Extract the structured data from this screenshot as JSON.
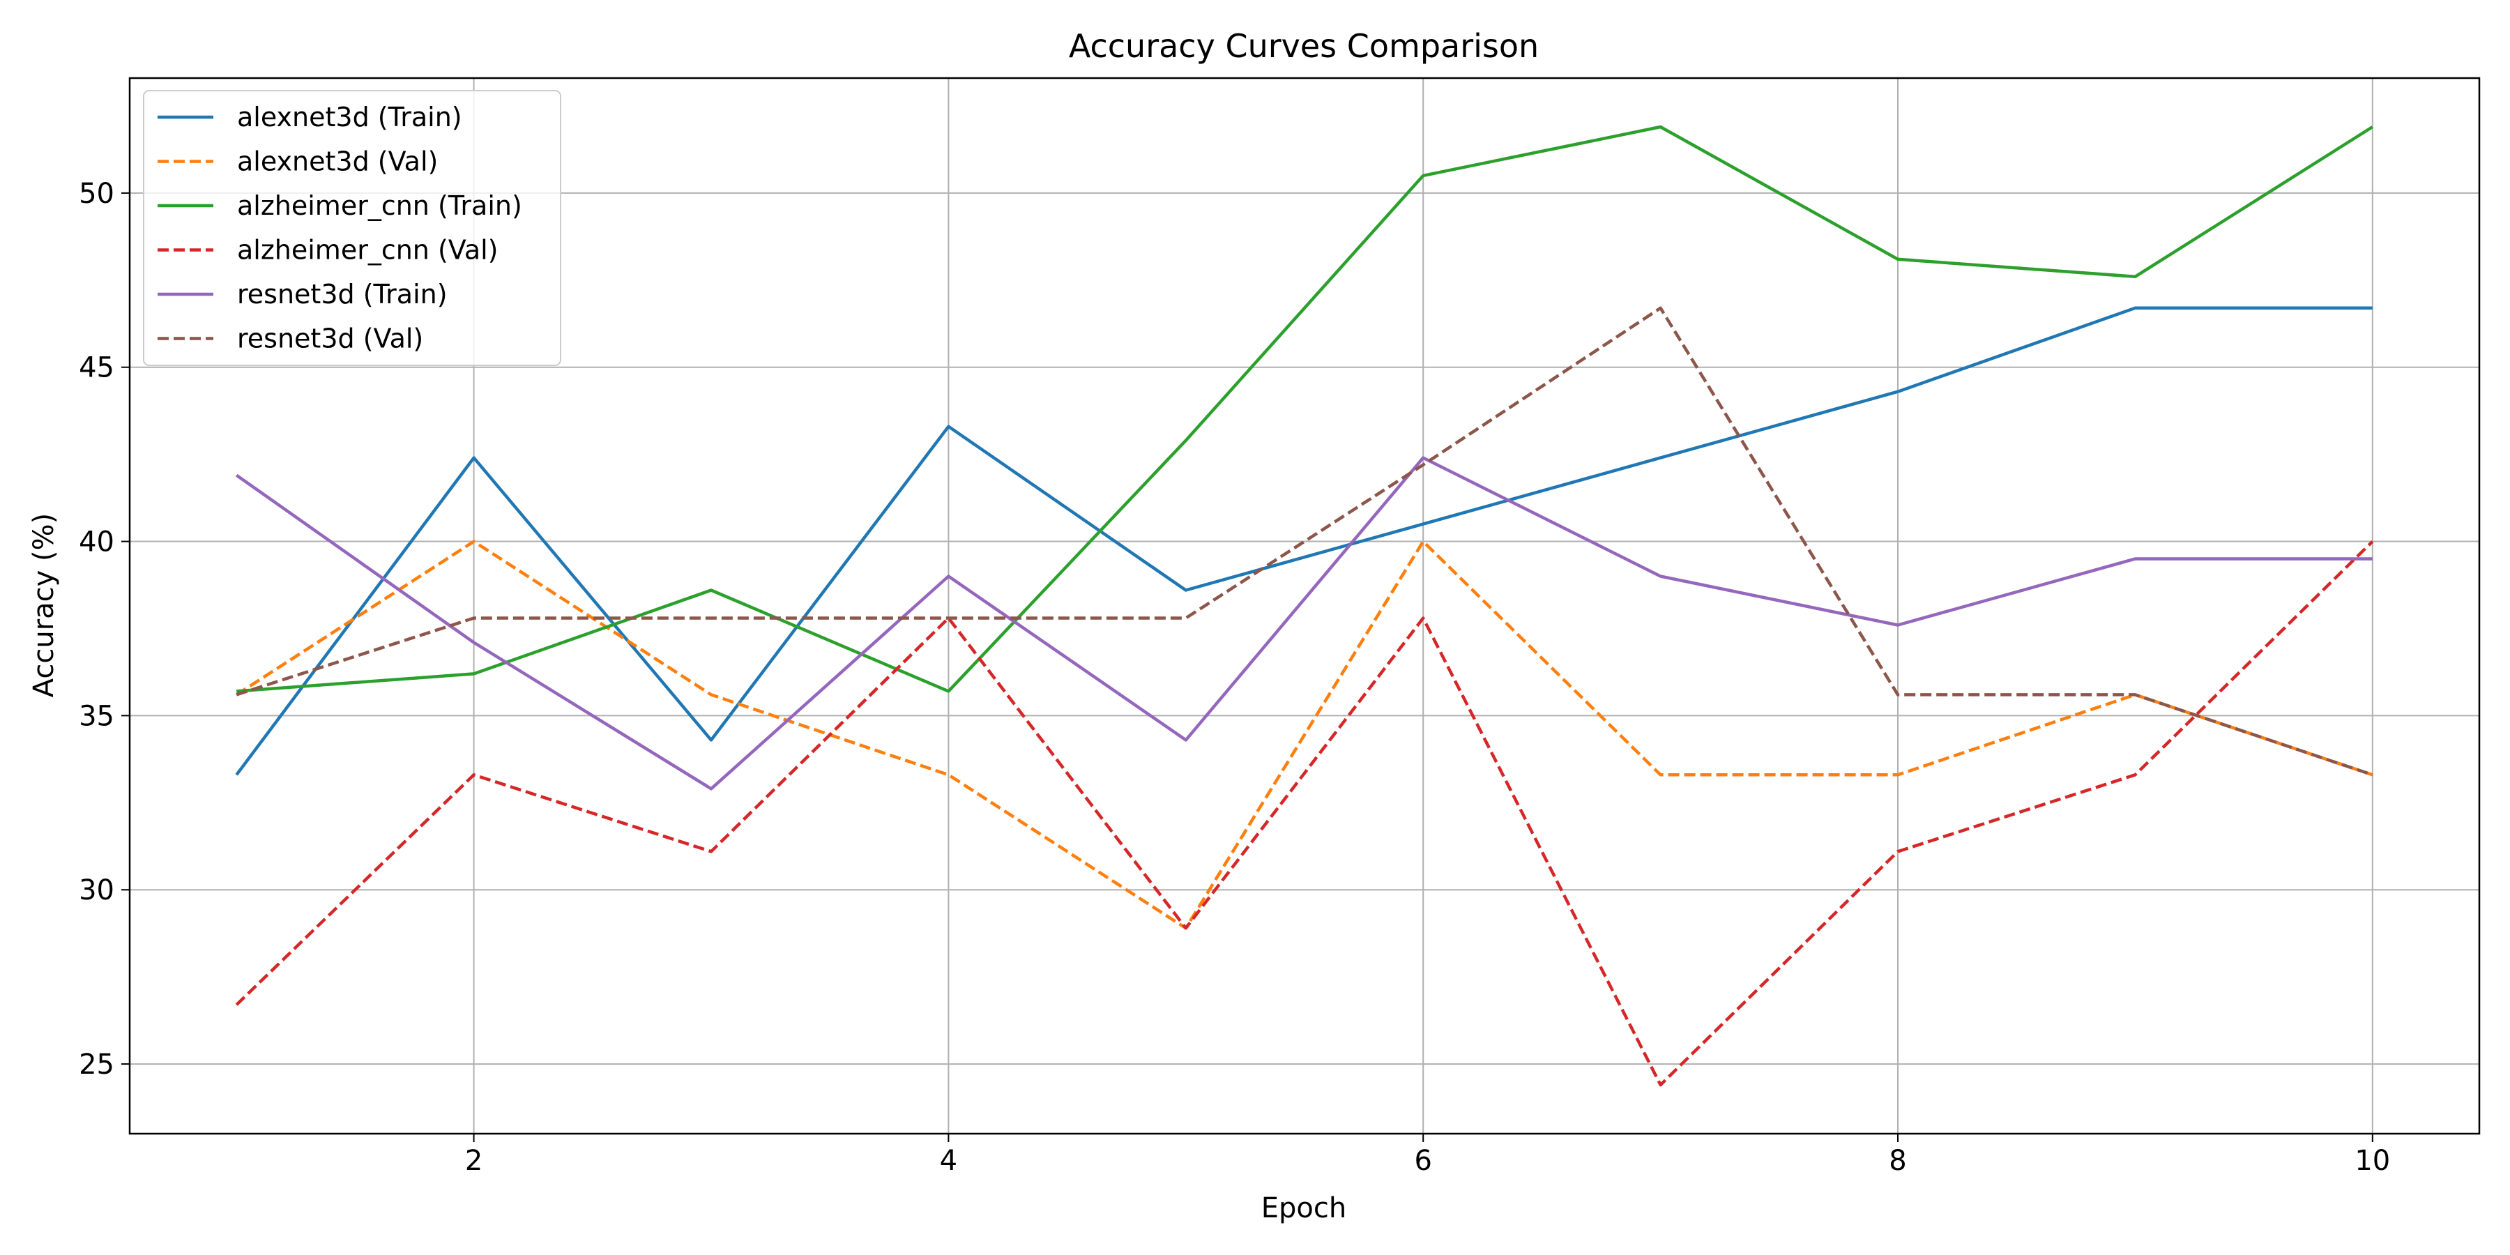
{
  "chart_data": {
    "type": "line",
    "title": "Accuracy Curves Comparison",
    "xlabel": "Epoch",
    "ylabel": "Accuracy (%)",
    "xlim": [
      0.55,
      10.45
    ],
    "ylim": [
      23,
      53.3
    ],
    "xticks": [
      2,
      4,
      6,
      8,
      10
    ],
    "yticks": [
      25,
      30,
      35,
      40,
      45,
      50
    ],
    "grid": true,
    "legend_position": "upper left",
    "x": [
      1,
      2,
      3,
      4,
      5,
      6,
      7,
      8,
      9,
      10
    ],
    "series": [
      {
        "name": "alexnet3d (Train)",
        "color": "#1f77b4",
        "dash": "solid",
        "values": [
          33.3,
          42.4,
          34.3,
          43.3,
          38.6,
          40.5,
          42.4,
          44.3,
          46.7,
          46.7
        ]
      },
      {
        "name": "alexnet3d (Val)",
        "color": "#ff7f0e",
        "dash": "dashed",
        "values": [
          35.6,
          40.0,
          35.6,
          33.3,
          28.9,
          40.0,
          33.3,
          33.3,
          35.6,
          33.3
        ]
      },
      {
        "name": "alzheimer_cnn (Train)",
        "color": "#2ca02c",
        "dash": "solid",
        "values": [
          35.7,
          36.2,
          38.6,
          35.7,
          42.9,
          50.5,
          51.9,
          48.1,
          47.6,
          51.9
        ]
      },
      {
        "name": "alzheimer_cnn (Val)",
        "color": "#d62728",
        "dash": "dashed",
        "values": [
          26.7,
          33.3,
          31.1,
          37.8,
          28.9,
          37.8,
          24.4,
          31.1,
          33.3,
          40.0
        ]
      },
      {
        "name": "resnet3d (Train)",
        "color": "#9467bd",
        "dash": "solid",
        "values": [
          41.9,
          37.1,
          32.9,
          39.0,
          34.3,
          42.4,
          39.0,
          37.6,
          39.5,
          39.5
        ]
      },
      {
        "name": "resnet3d (Val)",
        "color": "#8c564b",
        "dash": "dashed",
        "values": [
          35.6,
          37.8,
          37.8,
          37.8,
          37.8,
          42.2,
          46.7,
          35.6,
          35.6,
          33.3
        ]
      }
    ]
  }
}
